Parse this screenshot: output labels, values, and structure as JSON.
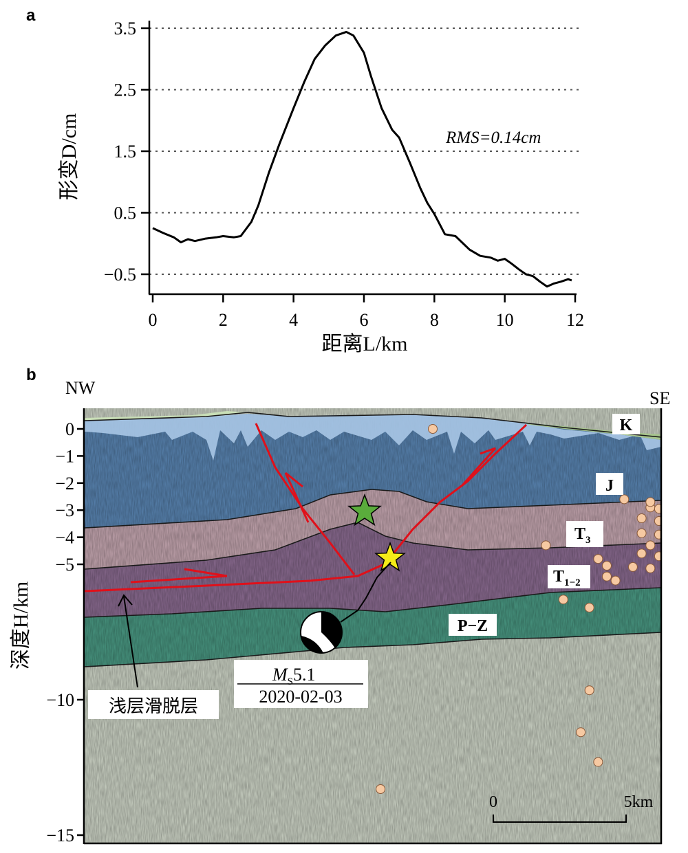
{
  "panel_a": {
    "label": "a",
    "ylabel": "形变D/cm",
    "xlabel": "距离L/km",
    "rms_text": "RMS=0.14cm"
  },
  "panel_b": {
    "label": "b",
    "corner_left": "NW",
    "corner_right": "SE",
    "ylabel": "深度H/km",
    "layers": [
      "K",
      "J",
      "T3",
      "T1-2",
      "P-Z"
    ],
    "event_magnitude": "MS5.1",
    "event_date": "2020-02-03",
    "detachment_label": "浅层滑脱层",
    "scale_start": "0",
    "scale_end": "5km"
  },
  "chart_data": [
    {
      "type": "line",
      "title": "",
      "xlabel": "距离L/km",
      "ylabel": "形变D/cm",
      "xlim": [
        0,
        12
      ],
      "ylim": [
        -0.75,
        3.5
      ],
      "xticks": [
        0,
        2,
        4,
        6,
        8,
        10,
        12
      ],
      "yticks": [
        -0.5,
        0.5,
        1.5,
        2.5,
        3.5
      ],
      "ytick_labels": [
        "−0.5",
        "0.5",
        "1.5",
        "2.5",
        "3.5"
      ],
      "grid": "horizontal dotted",
      "annotation": "RMS=0.14cm",
      "series": [
        {
          "x": [
            0.0,
            0.3,
            0.6,
            0.8,
            1.0,
            1.2,
            1.5,
            1.8,
            2.0,
            2.3,
            2.5,
            2.8,
            3.0,
            3.3,
            3.6,
            4.0,
            4.3,
            4.6,
            4.9,
            5.2,
            5.5,
            5.7,
            6.0,
            6.2,
            6.5,
            6.8,
            7.0,
            7.3,
            7.6,
            7.8,
            8.0,
            8.3,
            8.6,
            9.0,
            9.3,
            9.6,
            9.8,
            10.0,
            10.2,
            10.4,
            10.6,
            10.8,
            11.0,
            11.2,
            11.4,
            11.6,
            11.8,
            11.9
          ],
          "y": [
            0.25,
            0.17,
            0.1,
            0.02,
            0.07,
            0.04,
            0.08,
            0.1,
            0.12,
            0.1,
            0.12,
            0.35,
            0.62,
            1.15,
            1.62,
            2.2,
            2.62,
            3.0,
            3.22,
            3.38,
            3.44,
            3.38,
            3.1,
            2.72,
            2.2,
            1.85,
            1.72,
            1.32,
            0.9,
            0.66,
            0.48,
            0.15,
            0.12,
            -0.1,
            -0.2,
            -0.23,
            -0.28,
            -0.25,
            -0.33,
            -0.42,
            -0.5,
            -0.53,
            -0.62,
            -0.7,
            -0.65,
            -0.62,
            -0.58,
            -0.6
          ]
        }
      ]
    },
    {
      "type": "scatter",
      "title": "",
      "xlabel": "",
      "ylabel": "深度H/km",
      "ylim": [
        0,
        -15
      ],
      "yticks": [
        0,
        -1,
        -2,
        -3,
        -4,
        -5,
        -10,
        -15
      ],
      "ytick_labels": [
        "0",
        "−1",
        "−2",
        "−3",
        "−4",
        "−5",
        "−10",
        "−15"
      ],
      "series": [
        {
          "name": "",
          "x_km": [
            2.0,
            3.05,
            3.35,
            3.45,
            3.55,
            3.6,
            3.75,
            3.25,
            3.3,
            3.4,
            3.5,
            3.25,
            3.35,
            3.45,
            3.7,
            3.2,
            3.3,
            3.4,
            3.2,
            3.3,
            3.45,
            3.55,
            3.5,
            3.25,
            3.2,
            3.35,
            3.3,
            3.4,
            3.5,
            3.6,
            2.95,
            3.0,
            3.15,
            3.25,
            3.7,
            3.7,
            3.95,
            3.1,
            2.65,
            3.0,
            2.75,
            2.9,
            1.7,
            2.95,
            2.85,
            2.9,
            3.05
          ],
          "depth_km": [
            0.0,
            -2.2,
            -2.4,
            -2.4,
            -2.5,
            -2.6,
            -2.8,
            -2.9,
            -2.95,
            -3.0,
            -3.05,
            -2.7,
            -2.8,
            -2.9,
            -2.8,
            -3.3,
            -3.4,
            -3.55,
            -3.85,
            -3.9,
            -3.95,
            -4.0,
            -4.15,
            -4.3,
            -4.6,
            -4.5,
            -4.7,
            -4.8,
            -4.6,
            -4.3,
            -4.8,
            -5.05,
            -5.1,
            -5.15,
            -5.0,
            -5.5,
            -2.8,
            -2.6,
            -4.3,
            -5.45,
            -6.3,
            -6.6,
            -13.3,
            -12.3,
            -11.2,
            -9.65,
            -5.6
          ]
        }
      ],
      "stars": [
        "green",
        "yellow"
      ]
    }
  ],
  "colors": {
    "line": "#000000",
    "fault": "#e0101a",
    "layer_J": "#5a86b4",
    "layer_T3": "#c7a8b2",
    "layer_T12": "#8c6c92",
    "layer_PZ": "#4a9a84",
    "basement": "#cfd6c8",
    "quake": "#f6c9a2",
    "star_green": "#5aac3c",
    "star_yellow": "#f5ec18"
  }
}
